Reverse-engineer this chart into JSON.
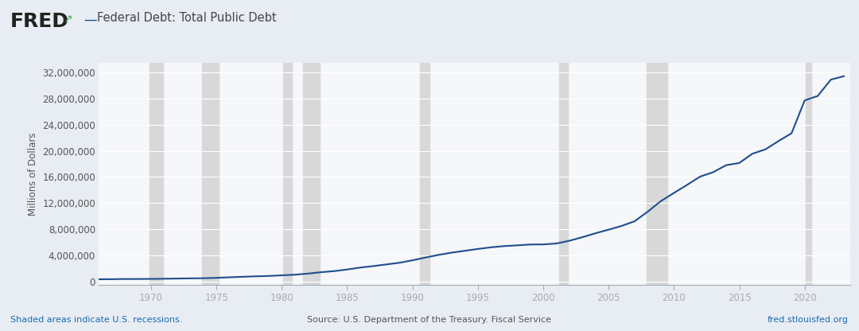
{
  "title": "Federal Debt: Total Public Debt",
  "ylabel": "Millions of Dollars",
  "line_color": "#1f4e8c",
  "line_width": 1.5,
  "background_color": "#e8edf4",
  "plot_background_color": "#f5f7fa",
  "grid_color": "#ffffff",
  "recession_color": "#d8d8d8",
  "yticks": [
    0,
    4000000,
    8000000,
    12000000,
    16000000,
    20000000,
    24000000,
    28000000,
    32000000
  ],
  "ylim": [
    -500000,
    33500000
  ],
  "xlim": [
    1966,
    2023.5
  ],
  "xticks": [
    1970,
    1975,
    1980,
    1985,
    1990,
    1995,
    2000,
    2005,
    2010,
    2015,
    2020
  ],
  "recession_bands": [
    [
      1969.9,
      1970.9
    ],
    [
      1973.9,
      1975.2
    ],
    [
      1980.1,
      1980.8
    ],
    [
      1981.6,
      1982.9
    ],
    [
      1990.6,
      1991.3
    ],
    [
      2001.2,
      2001.9
    ],
    [
      2007.9,
      2009.5
    ],
    [
      2020.1,
      2020.5
    ]
  ],
  "footer_left": "Shaded areas indicate U.S. recessions.",
  "footer_center": "Source: U.S. Department of the Treasury. Fiscal Service",
  "footer_right": "fred.stlouisfed.org",
  "years": [
    1966,
    1967,
    1968,
    1969,
    1970,
    1971,
    1972,
    1973,
    1974,
    1975,
    1976,
    1977,
    1978,
    1979,
    1980,
    1981,
    1982,
    1983,
    1984,
    1985,
    1986,
    1987,
    1988,
    1989,
    1990,
    1991,
    1992,
    1993,
    1994,
    1995,
    1996,
    1997,
    1998,
    1999,
    2000,
    2001,
    2002,
    2003,
    2004,
    2005,
    2006,
    2007,
    2008,
    2009,
    2010,
    2011,
    2012,
    2013,
    2014,
    2015,
    2016,
    2017,
    2018,
    2019,
    2020,
    2021,
    2022,
    2023
  ],
  "values": [
    328498,
    341349,
    369769,
    367141,
    382603,
    409466,
    437319,
    468426,
    486243,
    544131,
    631866,
    709140,
    780425,
    833751,
    930210,
    1028729,
    1197073,
    1410702,
    1576748,
    1827469,
    2120629,
    2345956,
    2602337,
    2857430,
    3233313,
    3665303,
    4064620,
    4411488,
    4692749,
    4973982,
    5224810,
    5413146,
    5526193,
    5656270,
    5674178,
    5807463,
    6228235,
    6783231,
    7379052,
    7932709,
    8507023,
    9229172,
    10699804,
    12311349,
    13561623,
    14790340,
    16066241,
    16738184,
    17824071,
    18150617,
    19573445,
    20244900,
    21516058,
    22719401,
    27748000,
    28428919,
    30928911,
    31462000
  ]
}
